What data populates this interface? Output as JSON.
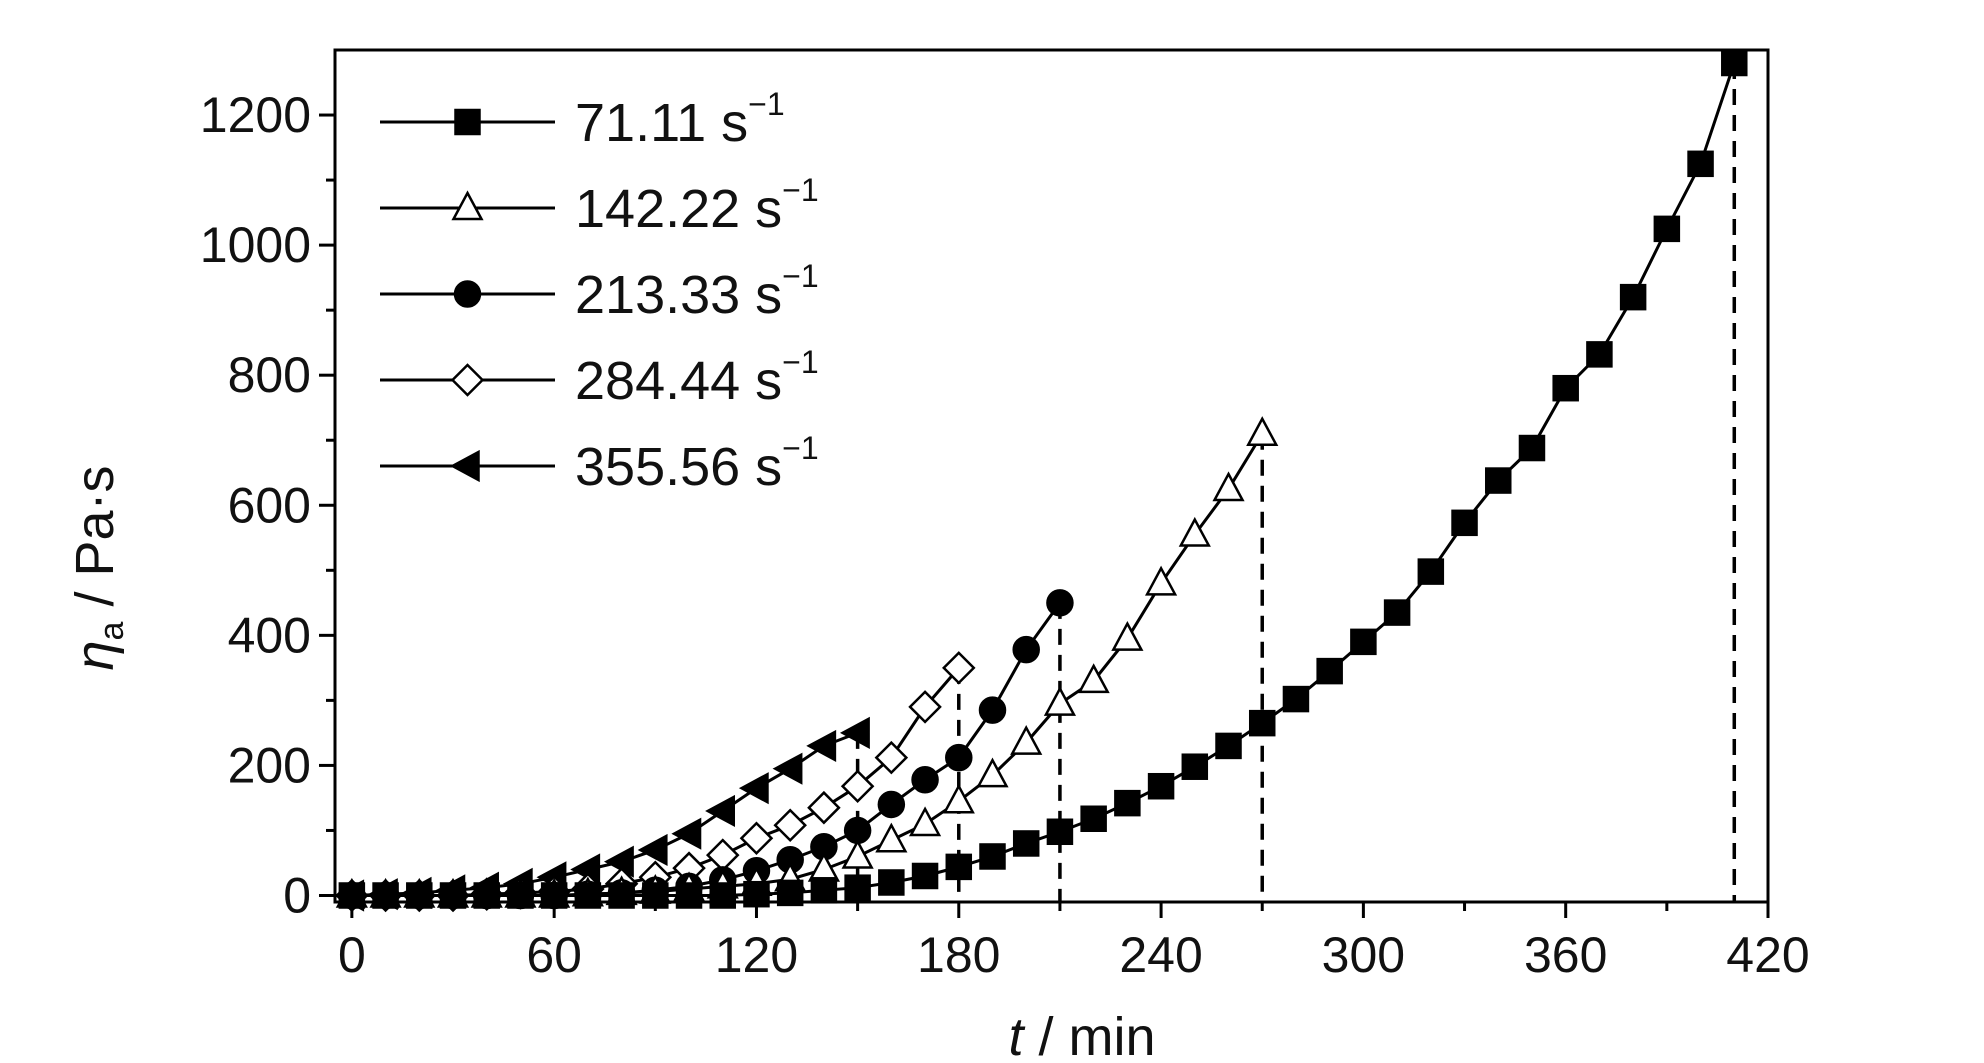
{
  "chart_data": {
    "type": "line",
    "title": "",
    "xlabel": "t / min",
    "xlabel_italic": "t",
    "xlabel_rest": " / min",
    "ylabel": "ηa / Pa·s",
    "ylabel_symbol": "η",
    "ylabel_sub": "a",
    "ylabel_rest": " / Pa·s",
    "xlim": [
      -5,
      420
    ],
    "ylim": [
      -10,
      1300
    ],
    "xticks": [
      0,
      60,
      120,
      180,
      240,
      300,
      360,
      420
    ],
    "yticks": [
      0,
      200,
      400,
      600,
      800,
      1000,
      1200
    ],
    "grid": false,
    "legend_position": "top-left",
    "series": [
      {
        "name": "71.11 s",
        "name_sup": "−1",
        "marker": "square",
        "filled": true,
        "x": [
          0,
          10,
          20,
          30,
          40,
          50,
          60,
          70,
          80,
          90,
          100,
          110,
          120,
          130,
          140,
          150,
          160,
          170,
          180,
          190,
          200,
          210,
          220,
          230,
          240,
          250,
          260,
          270,
          280,
          290,
          300,
          310,
          320,
          330,
          340,
          350,
          360,
          370,
          380,
          390,
          400,
          410
        ],
        "y": [
          0,
          0,
          0,
          0,
          0,
          0,
          0,
          0,
          0,
          0,
          0,
          0,
          2,
          4,
          8,
          12,
          20,
          30,
          44,
          60,
          80,
          98,
          118,
          142,
          168,
          198,
          230,
          265,
          302,
          345,
          390,
          435,
          498,
          573,
          638,
          688,
          780,
          832,
          920,
          1025,
          1125,
          1280
        ]
      },
      {
        "name": "142.22 s",
        "name_sup": "−1",
        "marker": "triangle-up",
        "filled": false,
        "x": [
          0,
          10,
          20,
          30,
          40,
          50,
          60,
          70,
          80,
          90,
          100,
          110,
          120,
          130,
          140,
          150,
          160,
          170,
          180,
          190,
          200,
          210,
          220,
          230,
          240,
          250,
          260,
          270
        ],
        "y": [
          0,
          0,
          0,
          0,
          0,
          0,
          0,
          2,
          4,
          6,
          10,
          14,
          18,
          25,
          40,
          60,
          85,
          110,
          145,
          185,
          235,
          295,
          330,
          395,
          480,
          555,
          625,
          710
        ]
      },
      {
        "name": "213.33 s",
        "name_sup": "−1",
        "marker": "circle",
        "filled": true,
        "x": [
          0,
          10,
          20,
          30,
          40,
          50,
          60,
          70,
          80,
          90,
          100,
          110,
          120,
          130,
          140,
          150,
          160,
          170,
          180,
          190,
          200,
          210
        ],
        "y": [
          0,
          0,
          0,
          0,
          0,
          0,
          0,
          2,
          4,
          8,
          14,
          24,
          38,
          55,
          75,
          100,
          140,
          178,
          212,
          285,
          378,
          450
        ]
      },
      {
        "name": "284.44 s",
        "name_sup": "−1",
        "marker": "diamond",
        "filled": false,
        "x": [
          0,
          10,
          20,
          30,
          40,
          50,
          60,
          70,
          80,
          90,
          100,
          110,
          120,
          130,
          140,
          150,
          160,
          170,
          180
        ],
        "y": [
          0,
          0,
          0,
          0,
          2,
          4,
          6,
          10,
          18,
          28,
          42,
          62,
          88,
          108,
          135,
          168,
          212,
          290,
          350
        ]
      },
      {
        "name": "355.56 s",
        "name_sup": "−1",
        "marker": "triangle-left",
        "filled": true,
        "x": [
          0,
          10,
          20,
          30,
          40,
          50,
          60,
          70,
          80,
          90,
          100,
          110,
          120,
          130,
          140,
          150
        ],
        "y": [
          0,
          2,
          4,
          8,
          12,
          18,
          28,
          40,
          52,
          70,
          95,
          130,
          165,
          195,
          230,
          250
        ]
      }
    ],
    "dashed_drops": [
      {
        "series": "71.11 s",
        "x": 410,
        "y": 1280
      },
      {
        "series": "142.22 s",
        "x": 270,
        "y": 710
      },
      {
        "series": "213.33 s",
        "x": 210,
        "y": 450
      },
      {
        "series": "284.44 s",
        "x": 180,
        "y": 350
      },
      {
        "series": "355.56 s",
        "x": 150,
        "y": 250
      }
    ]
  }
}
